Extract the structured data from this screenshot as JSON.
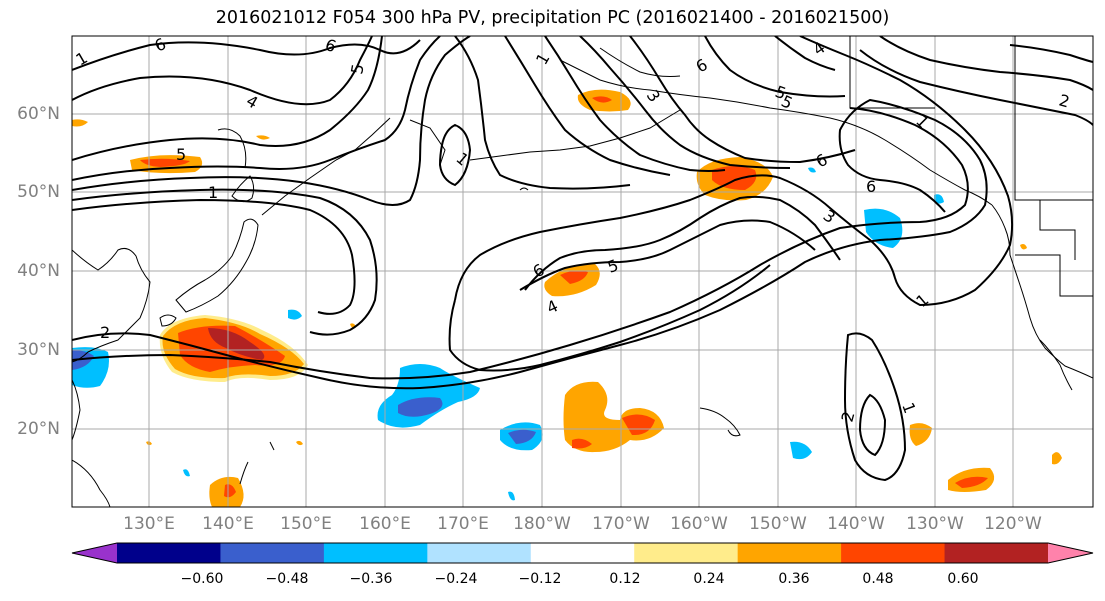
{
  "title": "2016021012 F054 300 hPa PV, precipitation PC (2016021400 - 2016021500)",
  "lat_labels": [
    "60°N",
    "50°N",
    "40°N",
    "30°N",
    "20°N"
  ],
  "lon_labels": [
    "130°E",
    "140°E",
    "150°E",
    "160°E",
    "170°E",
    "180°W",
    "170°W",
    "160°W",
    "150°W",
    "140°W",
    "130°W",
    "120°W"
  ],
  "colorbar": {
    "ticks": [
      "−0.60",
      "−0.48",
      "−0.36",
      "−0.24",
      "−0.12",
      "0.12",
      "0.24",
      "0.36",
      "0.48",
      "0.60"
    ],
    "colors": [
      "#9932cc",
      "#00008b",
      "#3a5fcd",
      "#00bfff",
      "#b0e2ff",
      "#ffffff",
      "#ffec8b",
      "#ffa500",
      "#ff4500",
      "#b22222",
      "#ff82ab"
    ]
  },
  "contour_labels": [
    "6",
    "6",
    "1",
    "5",
    "4",
    "1",
    "5",
    "1",
    "3",
    "6",
    "4",
    "5",
    "2",
    "1",
    "5",
    "6",
    "6",
    "4",
    "5",
    "6",
    "3",
    "1",
    "2",
    "2",
    "1",
    "1"
  ],
  "fill_colors": {
    "orange": "#ffa500",
    "red_orange": "#ff4500",
    "dark_red": "#b22222",
    "light_yellow": "#ffec8b",
    "deep_sky": "#00bfff",
    "royal_blue": "#3a5fcd"
  }
}
